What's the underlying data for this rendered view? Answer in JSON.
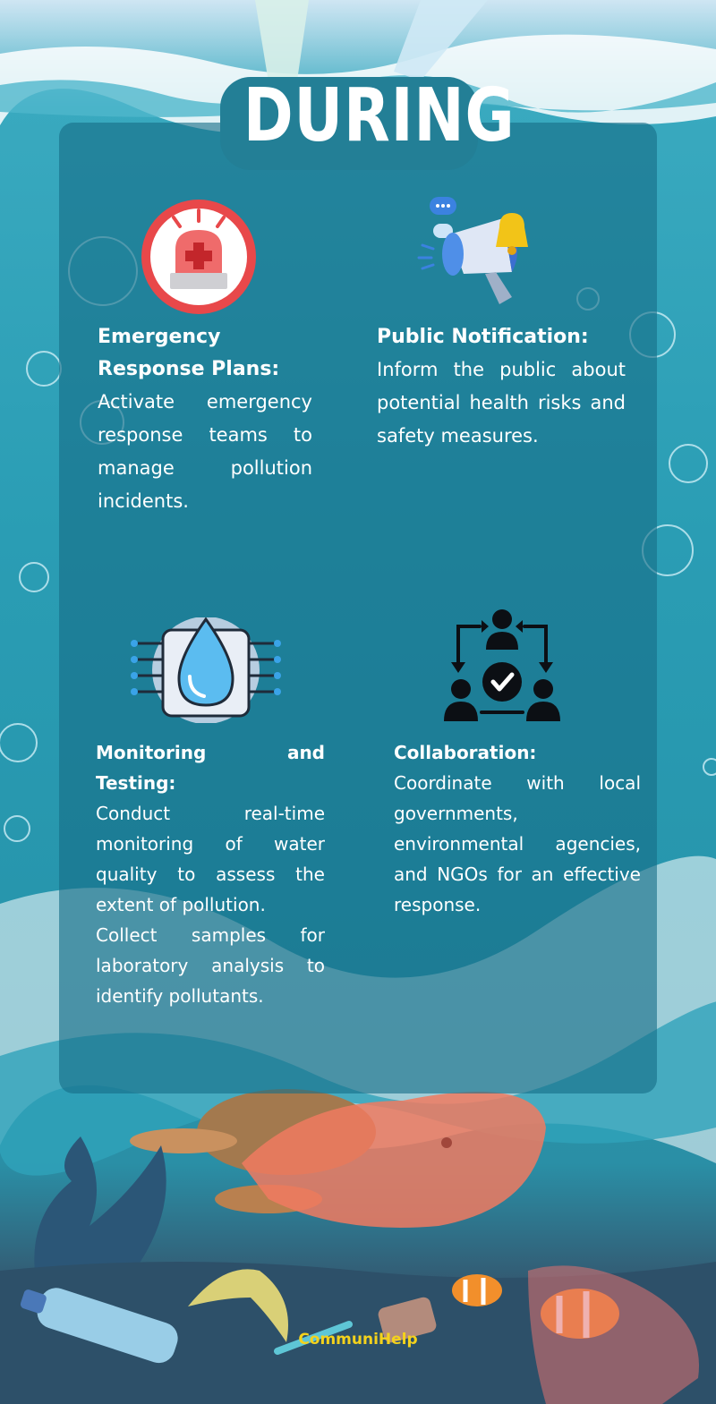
{
  "header": {
    "title": "DURING"
  },
  "sections": [
    {
      "heading": "Emergency Response Plans:",
      "body": "Activate emergency response teams to manage pollution incidents."
    },
    {
      "heading": "Public Notification:",
      "body": "Inform the public about potential health risks and safety measures."
    },
    {
      "heading": "Monitoring and Testing:",
      "body": "Conduct real-time monitoring of water quality to assess the extent of pollution.",
      "body2": "Collect samples for laboratory analysis to identify pollutants."
    },
    {
      "heading": "Collaboration:",
      "body": "Coordinate with local governments, environmental agencies, and NGOs for an effective response."
    }
  ],
  "icons": [
    "siren-icon",
    "megaphone-icon",
    "water-sensor-icon",
    "team-collaboration-icon"
  ],
  "footer": {
    "brand": "CommuniHelp"
  },
  "colors": {
    "panel": "#1c7a92",
    "alarm_red": "#e8484a",
    "footer_text": "#f4d21c"
  }
}
